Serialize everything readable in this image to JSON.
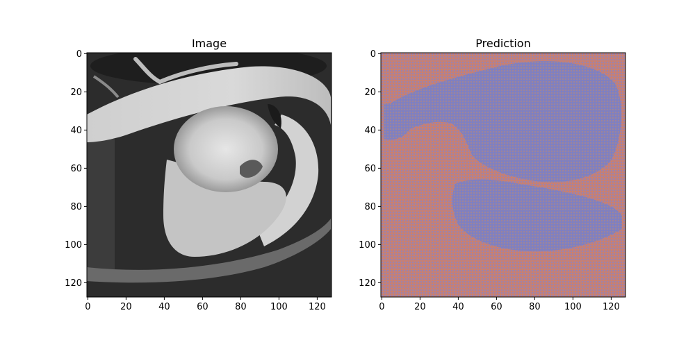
{
  "chart_data": [
    {
      "type": "heatmap",
      "title": "Image",
      "xlabel": "",
      "ylabel": "",
      "xlim": [
        0,
        127
      ],
      "ylim": [
        127,
        0
      ],
      "x_ticks": [
        "0",
        "20",
        "40",
        "60",
        "80",
        "100",
        "120"
      ],
      "y_ticks": [
        "0",
        "20",
        "40",
        "60",
        "80",
        "100",
        "120"
      ],
      "colormap": "grayscale",
      "image_size": [
        128,
        128
      ],
      "grid": false
    },
    {
      "type": "heatmap",
      "title": "Prediction",
      "xlabel": "",
      "ylabel": "",
      "xlim": [
        0,
        127
      ],
      "ylim": [
        127,
        0
      ],
      "x_ticks": [
        "0",
        "20",
        "40",
        "60",
        "80",
        "100",
        "120"
      ],
      "y_ticks": [
        "0",
        "20",
        "40",
        "60",
        "80",
        "100",
        "120"
      ],
      "colors": {
        "background_class": "#c58075",
        "foreground_class": "#8080c0"
      },
      "image_size": [
        128,
        128
      ],
      "grid": false
    }
  ]
}
